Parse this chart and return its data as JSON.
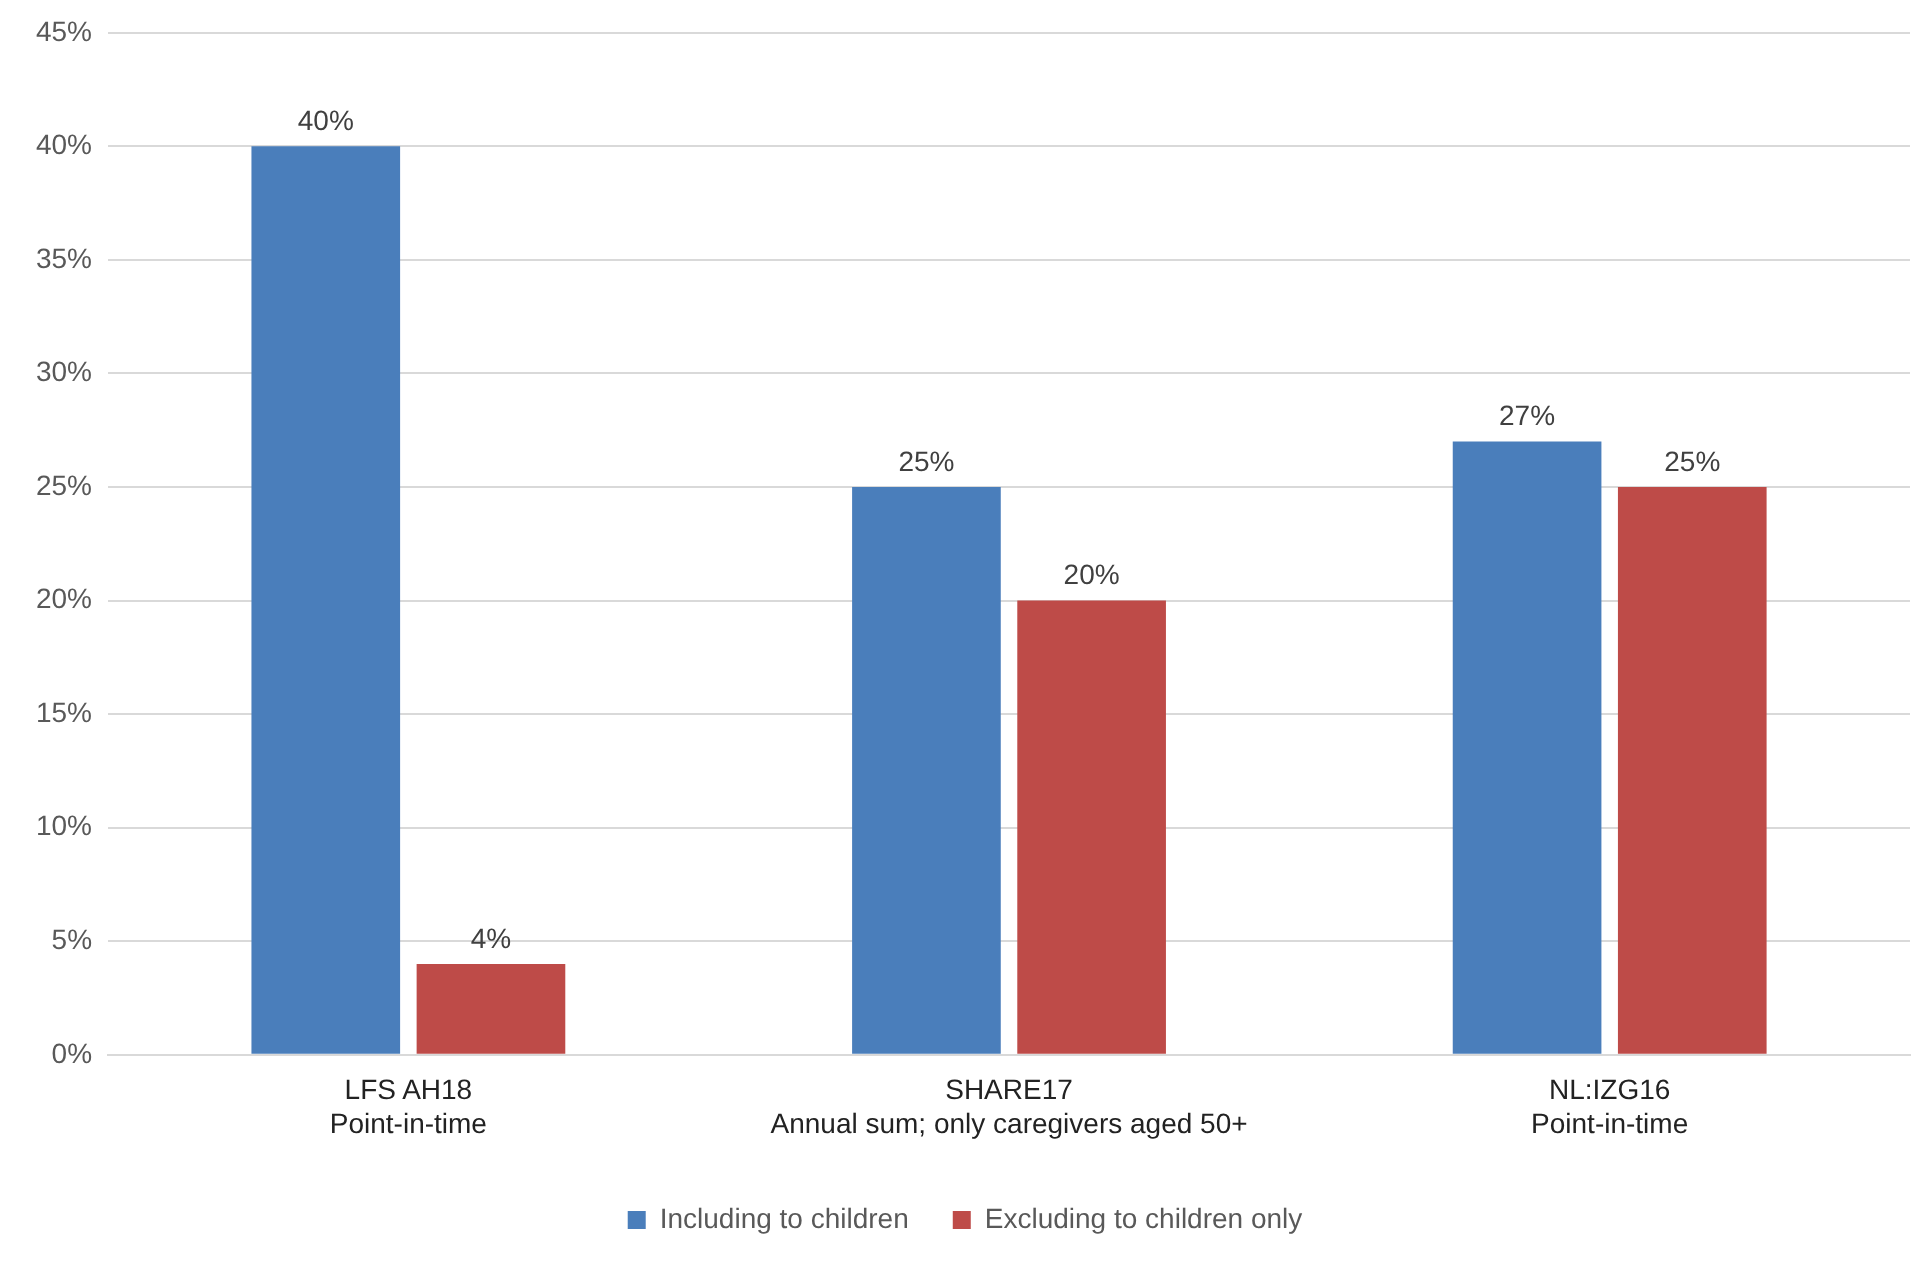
{
  "chart_data": {
    "type": "bar",
    "categories": [
      "LFS AH18\nPoint-in-time",
      "SHARE17\nAnnual sum; only caregivers aged 50+",
      "NL:IZG16\nPoint-in-time"
    ],
    "series": [
      {
        "name": "Including to children",
        "color": "#4a7ebb",
        "values": [
          40,
          25,
          27
        ],
        "value_labels": [
          "40%",
          "25%",
          "27%"
        ]
      },
      {
        "name": "Excluding to children only",
        "color": "#be4b48",
        "values": [
          4,
          20,
          25
        ],
        "value_labels": [
          "4%",
          "20%",
          "25%"
        ]
      }
    ],
    "ylim": [
      0,
      45
    ],
    "yticks": [
      {
        "value": 0,
        "label": "0%"
      },
      {
        "value": 5,
        "label": "5%"
      },
      {
        "value": 10,
        "label": "10%"
      },
      {
        "value": 15,
        "label": "15%"
      },
      {
        "value": 20,
        "label": "20%"
      },
      {
        "value": 25,
        "label": "25%"
      },
      {
        "value": 30,
        "label": "30%"
      },
      {
        "value": 35,
        "label": "35%"
      },
      {
        "value": 40,
        "label": "40%"
      },
      {
        "value": 45,
        "label": "45%"
      }
    ],
    "grid": "y",
    "legend": "bottom"
  }
}
